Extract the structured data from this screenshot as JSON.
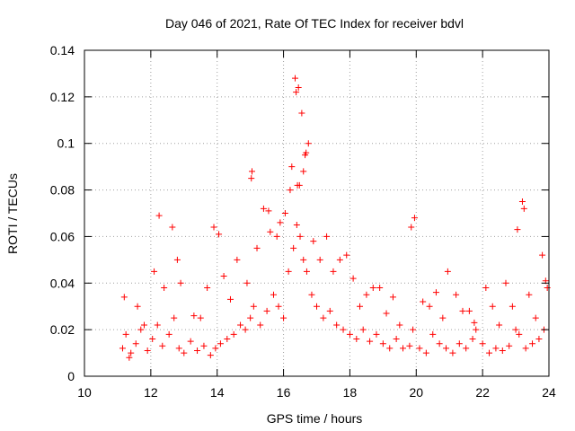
{
  "chart_data": {
    "type": "scatter",
    "title": "Day 046 of 2021, Rate Of TEC Index for receiver bdvl",
    "xlabel": "GPS time / hours",
    "ylabel": "ROTI / TECUs",
    "xlim": [
      10,
      24
    ],
    "ylim": [
      0,
      0.14
    ],
    "x_ticks": [
      10,
      12,
      14,
      16,
      18,
      20,
      22,
      24
    ],
    "y_ticks": [
      0,
      0.02,
      0.04,
      0.06,
      0.08,
      0.1,
      0.12,
      0.14
    ],
    "x_tick_labels": [
      "10",
      "12",
      "14",
      "16",
      "18",
      "20",
      "22",
      "24"
    ],
    "y_tick_labels": [
      "0",
      "0.02",
      "0.04",
      "0.06",
      "0.08",
      "0.1",
      "0.12",
      "0.14"
    ],
    "grid": true,
    "marker": "plus",
    "color": "#ff0000",
    "series": [
      {
        "name": "ROTI",
        "x": [
          11.15,
          11.25,
          11.4,
          11.55,
          11.7,
          11.9,
          12.05,
          12.2,
          12.35,
          12.55,
          12.7,
          12.85,
          13.0,
          13.2,
          13.4,
          13.6,
          13.8,
          13.95,
          14.1,
          14.3,
          14.5,
          14.7,
          14.85,
          15.0,
          15.1,
          15.3,
          15.5,
          15.7,
          15.85,
          16.0,
          16.15,
          16.3,
          16.4,
          16.5,
          16.6,
          16.7,
          16.85,
          17.0,
          17.2,
          17.4,
          17.6,
          17.8,
          18.0,
          18.2,
          18.4,
          18.6,
          18.8,
          19.0,
          19.2,
          19.4,
          19.6,
          19.8,
          19.9,
          20.1,
          20.3,
          20.5,
          20.7,
          20.9,
          21.1,
          21.3,
          21.5,
          21.7,
          21.8,
          22.0,
          22.2,
          22.4,
          22.6,
          22.8,
          23.0,
          23.1,
          23.3,
          23.5,
          23.7,
          23.85,
          11.2,
          11.6,
          12.1,
          12.4,
          12.8,
          13.3,
          13.7,
          14.2,
          14.6,
          15.05,
          15.4,
          15.8,
          16.2,
          16.35,
          16.45,
          16.55,
          16.65,
          16.75,
          17.1,
          17.5,
          17.9,
          18.3,
          18.7,
          19.1,
          19.5,
          19.95,
          20.4,
          20.8,
          21.2,
          21.6,
          22.1,
          22.5,
          22.9,
          23.2,
          23.6,
          23.9,
          12.25,
          12.65,
          13.9,
          14.05,
          15.03,
          15.55,
          15.9,
          16.25,
          16.38,
          16.42,
          16.6,
          16.68,
          17.3,
          18.5,
          19.85,
          20.95,
          21.75,
          23.05,
          23.25,
          23.8,
          11.35,
          11.8,
          12.9,
          13.5,
          14.4,
          14.9,
          15.2,
          15.6,
          16.05,
          16.48,
          16.9,
          17.7,
          18.1,
          18.9,
          19.3,
          20.2,
          20.6,
          21.4,
          22.3,
          22.7,
          23.4,
          23.95
        ],
        "y": [
          0.012,
          0.018,
          0.01,
          0.014,
          0.02,
          0.011,
          0.016,
          0.022,
          0.013,
          0.018,
          0.025,
          0.012,
          0.01,
          0.015,
          0.011,
          0.013,
          0.009,
          0.012,
          0.014,
          0.016,
          0.018,
          0.022,
          0.02,
          0.025,
          0.03,
          0.022,
          0.028,
          0.035,
          0.03,
          0.025,
          0.045,
          0.055,
          0.065,
          0.06,
          0.05,
          0.045,
          0.035,
          0.03,
          0.025,
          0.028,
          0.022,
          0.02,
          0.018,
          0.016,
          0.02,
          0.015,
          0.018,
          0.014,
          0.012,
          0.016,
          0.012,
          0.013,
          0.02,
          0.012,
          0.01,
          0.018,
          0.014,
          0.012,
          0.01,
          0.014,
          0.012,
          0.016,
          0.02,
          0.014,
          0.01,
          0.012,
          0.011,
          0.013,
          0.02,
          0.018,
          0.012,
          0.014,
          0.016,
          0.02,
          0.034,
          0.03,
          0.045,
          0.038,
          0.05,
          0.026,
          0.038,
          0.043,
          0.05,
          0.088,
          0.072,
          0.06,
          0.08,
          0.128,
          0.124,
          0.113,
          0.095,
          0.1,
          0.05,
          0.045,
          0.052,
          0.03,
          0.038,
          0.027,
          0.022,
          0.068,
          0.03,
          0.025,
          0.035,
          0.028,
          0.038,
          0.022,
          0.03,
          0.075,
          0.025,
          0.041,
          0.069,
          0.064,
          0.064,
          0.061,
          0.085,
          0.071,
          0.066,
          0.09,
          0.122,
          0.082,
          0.088,
          0.096,
          0.06,
          0.035,
          0.064,
          0.045,
          0.023,
          0.063,
          0.072,
          0.052,
          0.008,
          0.022,
          0.04,
          0.025,
          0.033,
          0.04,
          0.055,
          0.062,
          0.07,
          0.082,
          0.058,
          0.05,
          0.042,
          0.038,
          0.034,
          0.032,
          0.036,
          0.028,
          0.03,
          0.04,
          0.035,
          0.038
        ]
      }
    ]
  }
}
